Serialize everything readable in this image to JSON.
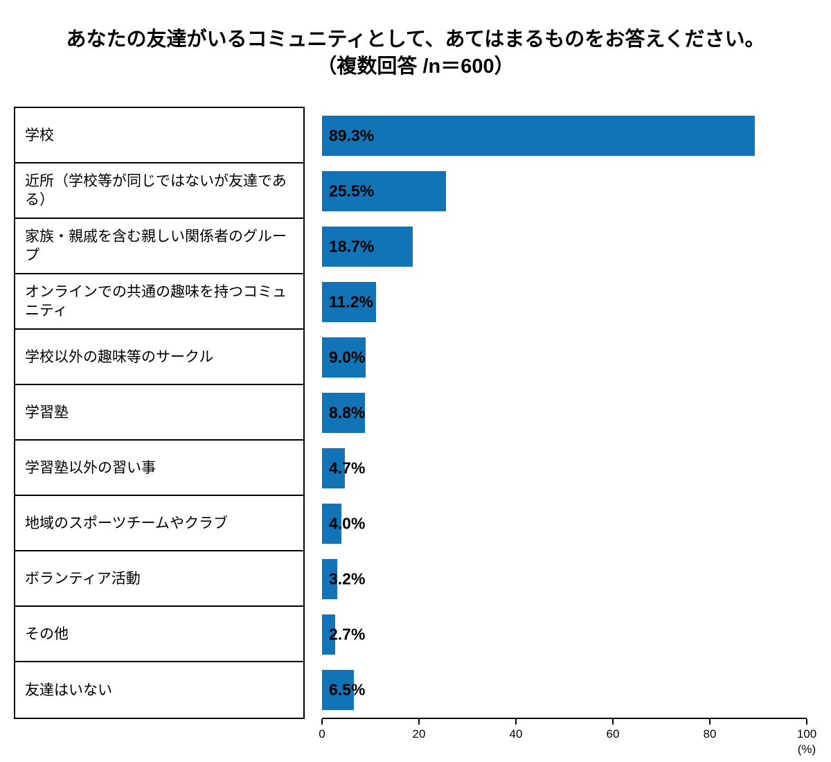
{
  "title": {
    "line1": "あなたの友達がいるコミュニティとして、あてはまるものをお答えください。",
    "line2": "（複数回答 /n＝600）"
  },
  "chart_data": {
    "type": "bar",
    "orientation": "horizontal",
    "title": "あなたの友達がいるコミュニティとして、あてはまるものをお答えください。（複数回答 /n＝600）",
    "categories": [
      "学校",
      "近所（学校等が同じではないが友達である）",
      "家族・親戚を含む親しい関係者のグループ",
      "オンラインでの共通の趣味を持つコミュニティ",
      "学校以外の趣味等のサークル",
      "学習塾",
      "学習塾以外の習い事",
      "地域のスポーツチームやクラブ",
      "ボランティア活動",
      "その他",
      "友達はいない"
    ],
    "values": [
      89.3,
      25.5,
      18.7,
      11.2,
      9.0,
      8.8,
      4.7,
      4.0,
      3.2,
      2.7,
      6.5
    ],
    "value_labels": [
      "89.3%",
      "25.5%",
      "18.7%",
      "11.2%",
      "9.0%",
      "8.8%",
      "4.7%",
      "4.0%",
      "3.2%",
      "2.7%",
      "6.5%"
    ],
    "xlim": [
      0,
      100
    ],
    "x_ticks": [
      0,
      20,
      40,
      60,
      80,
      100
    ],
    "x_unit": "(%)",
    "bar_color": "#1273b7",
    "grid": false,
    "legend": false
  }
}
